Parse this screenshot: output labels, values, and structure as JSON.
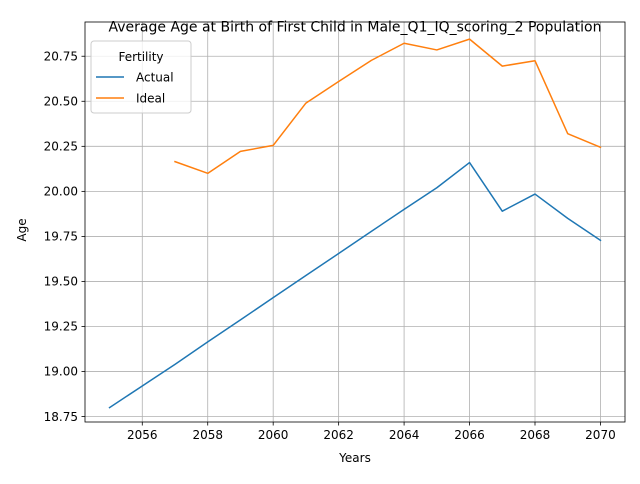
{
  "chart_data": {
    "type": "line",
    "title": "Average Age at Birth of First Child in Male_Q1_IQ_scoring_2 Population",
    "xlabel": "Years",
    "ylabel": "Age",
    "xlim": [
      2054.25,
      2070.75
    ],
    "ylim": [
      18.72,
      20.94
    ],
    "xticks": [
      2056,
      2058,
      2060,
      2062,
      2064,
      2066,
      2068,
      2070
    ],
    "xtick_labels": [
      "2056",
      "2058",
      "2060",
      "2062",
      "2064",
      "2066",
      "2068",
      "2070"
    ],
    "yticks": [
      18.75,
      19.0,
      19.25,
      19.5,
      19.75,
      20.0,
      20.25,
      20.5,
      20.75
    ],
    "ytick_labels": [
      "18.75",
      "19.00",
      "19.25",
      "19.50",
      "19.75",
      "20.00",
      "20.25",
      "20.50",
      "20.75"
    ],
    "grid": true,
    "legend": {
      "title": "Fertility",
      "placement": "top-left"
    },
    "series": [
      {
        "name": "Actual",
        "color": "#1f77b4",
        "x": [
          2055,
          2056,
          2057,
          2058,
          2059,
          2060,
          2061,
          2062,
          2063,
          2064,
          2065,
          2066,
          2067,
          2068,
          2069,
          2070
        ],
        "values": [
          18.8,
          18.92,
          19.04,
          19.165,
          19.287,
          19.41,
          19.533,
          19.655,
          19.778,
          19.9,
          20.02,
          20.16,
          19.89,
          19.985,
          19.85,
          19.728
        ]
      },
      {
        "name": "Ideal",
        "color": "#ff7f0e",
        "x": [
          2057,
          2058,
          2059,
          2060,
          2061,
          2062,
          2063,
          2064,
          2065,
          2066,
          2067,
          2068,
          2069,
          2070
        ],
        "values": [
          20.165,
          20.1,
          20.222,
          20.255,
          20.49,
          20.61,
          20.727,
          20.822,
          20.785,
          20.845,
          20.695,
          20.725,
          20.32,
          20.245
        ]
      }
    ]
  }
}
